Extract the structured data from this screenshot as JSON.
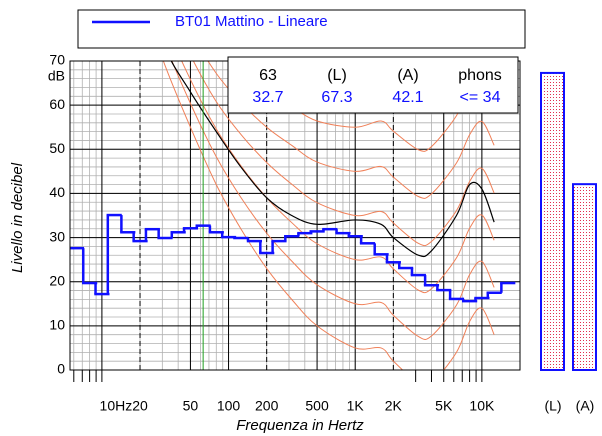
{
  "chart_data": {
    "type": "step",
    "xlabel": "Frequenza in Hertz",
    "ylabel": "Livello in decibel",
    "yunit": "dB",
    "xscale": "log",
    "xlim": [
      5.6,
      20000
    ],
    "ylim": [
      0,
      70
    ],
    "yticks": [
      0,
      10,
      20,
      30,
      40,
      50,
      60,
      70
    ],
    "xticks": [
      {
        "value": 10,
        "label": "10Hz"
      },
      20,
      50,
      100,
      200,
      500,
      {
        "value": 1000,
        "label": "1K"
      },
      {
        "value": 2000,
        "label": "2K"
      },
      {
        "value": 5000,
        "label": "5K"
      },
      {
        "value": 10000,
        "label": "10K"
      }
    ],
    "grid": true,
    "x": [
      6.3,
      8,
      10,
      12.5,
      16,
      20,
      25,
      31.5,
      40,
      50,
      63,
      80,
      100,
      125,
      160,
      200,
      250,
      315,
      400,
      500,
      630,
      800,
      1000,
      1250,
      1600,
      2000,
      2500,
      3150,
      4000,
      5000,
      6300,
      8000,
      10000,
      12500,
      16000
    ],
    "series": [
      {
        "name": "BT01 Mattino - Lineare",
        "color": "#1010ff",
        "values": [
          27.6,
          19.7,
          17.2,
          35.1,
          31.2,
          29.2,
          31.9,
          29.9,
          31.2,
          32.1,
          32.7,
          31.2,
          30.1,
          29.9,
          29.2,
          26.5,
          29.2,
          30.3,
          31,
          31.4,
          31.9,
          31,
          30.3,
          28.7,
          26.2,
          24.4,
          23.1,
          21.5,
          19.2,
          18.1,
          16.1,
          15.6,
          16.3,
          17.5,
          19.7
        ]
      }
    ],
    "contours": {
      "color": "#f08058",
      "x": [
        20,
        31.5,
        50,
        80,
        125,
        200,
        315,
        500,
        1000,
        1600,
        2000,
        3150,
        4000,
        6300,
        8000,
        10000,
        12500
      ],
      "series": [
        {
          "values": [
            85,
            69,
            55,
            42,
            32,
            23,
            16,
            10,
            5,
            5,
            2,
            -3,
            -3,
            4,
            11,
            14,
            8
          ]
        },
        {
          "values": [
            89.6,
            73.9,
            60.4,
            48.3,
            39.1,
            31,
            24.7,
            19.3,
            15,
            15.3,
            12.4,
            7.6,
            7.7,
            14.7,
            21.6,
            24.6,
            18.7
          ]
        },
        {
          "values": [
            94.1,
            78.7,
            65.8,
            54.6,
            46.3,
            39,
            33.4,
            28.6,
            25,
            25.6,
            22.9,
            18.1,
            18.4,
            25.4,
            32.1,
            35.1,
            29.4
          ]
        },
        {
          "values": [
            98.7,
            83.6,
            71.3,
            60.8,
            53.4,
            47,
            42.1,
            37.9,
            35,
            35.9,
            33.3,
            28.7,
            29.1,
            36.1,
            42.7,
            45.7,
            40.1
          ]
        },
        {
          "values": [
            103.3,
            88.4,
            76.7,
            67.2,
            60.6,
            55,
            50.9,
            47.1,
            45,
            46.1,
            43.7,
            39.3,
            39.9,
            46.9,
            53.3,
            56.3,
            50.9
          ]
        },
        {
          "values": [
            107.9,
            93.3,
            82.2,
            73.4,
            67.7,
            63,
            59.6,
            56.4,
            55,
            56.4,
            54.1,
            49.9,
            50.6,
            57.6,
            63.9,
            66.9,
            61.6
          ]
        },
        {
          "values": [
            112.4,
            98.1,
            87.6,
            79.7,
            74.9,
            71,
            68.3,
            65.7,
            65,
            66.7,
            64.6,
            60.4,
            61.3,
            68.3,
            74.4,
            77.4,
            72.3
          ]
        },
        {
          "values": [
            117,
            103,
            93,
            86,
            82,
            79,
            77,
            75,
            75,
            77,
            75,
            71,
            72,
            79,
            85,
            88,
            83
          ]
        }
      ]
    },
    "reference_contour": {
      "color": "#000000",
      "values": [
        90,
        73,
        63,
        54,
        46,
        39,
        35,
        33,
        34,
        33,
        30,
        26,
        27,
        35,
        42,
        41,
        33.5
      ]
    },
    "highlight_color": "#20a020",
    "info": {
      "band": 63,
      "headers": [
        "(L)",
        "(A)",
        "phons"
      ],
      "values": [
        32.7,
        67.3,
        42.1
      ],
      "phons": "<= 34",
      "value_color": "#1010ff"
    },
    "totals": {
      "categories": [
        "(L)",
        "(A)"
      ],
      "values": [
        67.3,
        42.1
      ],
      "color": "#1010ff",
      "dot_color": "#e03050"
    }
  }
}
